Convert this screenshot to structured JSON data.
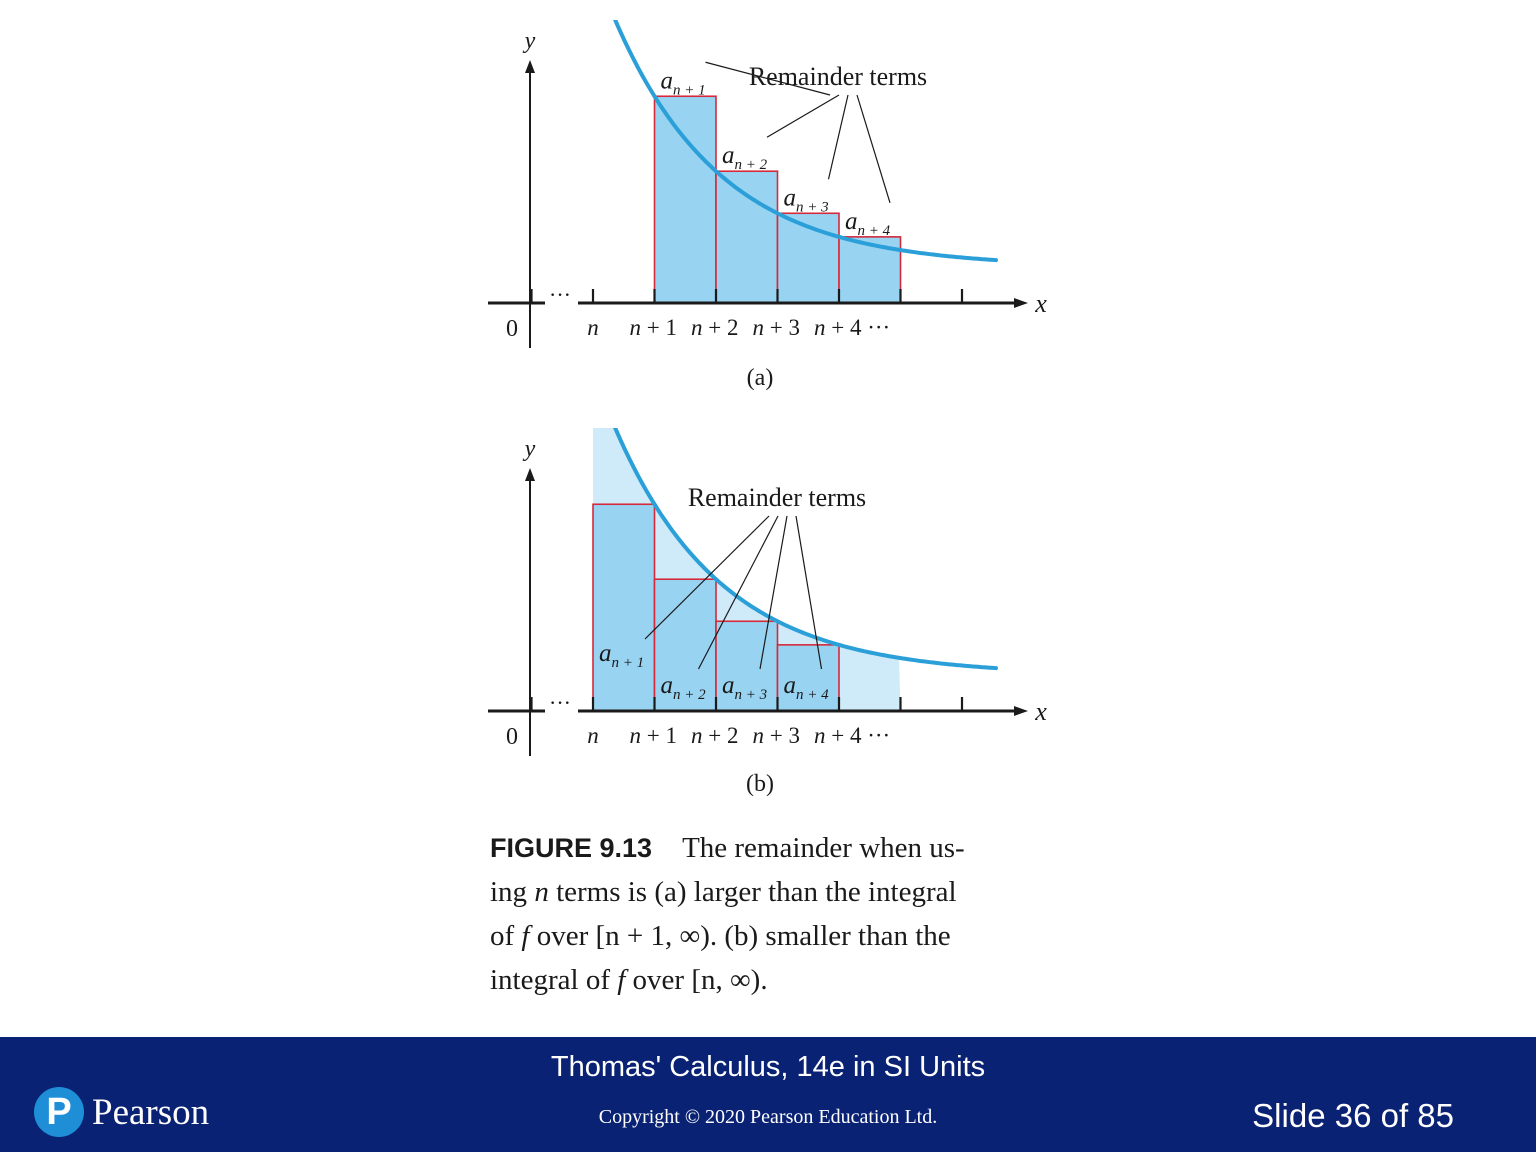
{
  "figure_a": {
    "title": "Remainder terms",
    "axis_x": "x",
    "axis_y": "y",
    "origin": "0",
    "dots": "···",
    "tick_labels": [
      {
        "var": "n",
        "suffix": ""
      },
      {
        "var": "n",
        "suffix": " + 1"
      },
      {
        "var": "n",
        "suffix": " + 2"
      },
      {
        "var": "n",
        "suffix": " + 3"
      },
      {
        "var": "n",
        "suffix": " + 4 ···"
      }
    ],
    "terms": [
      {
        "base": "a",
        "sub": "n + 1"
      },
      {
        "base": "a",
        "sub": "n + 2"
      },
      {
        "base": "a",
        "sub": "n + 3"
      },
      {
        "base": "a",
        "sub": "n + 4"
      }
    ],
    "sub_label": "(a)"
  },
  "figure_b": {
    "title": "Remainder terms",
    "axis_x": "x",
    "axis_y": "y",
    "origin": "0",
    "dots": "···",
    "tick_labels": [
      {
        "var": "n",
        "suffix": ""
      },
      {
        "var": "n",
        "suffix": " + 1"
      },
      {
        "var": "n",
        "suffix": " + 2"
      },
      {
        "var": "n",
        "suffix": " + 3"
      },
      {
        "var": "n",
        "suffix": " + 4 ···"
      }
    ],
    "terms": [
      {
        "base": "a",
        "sub": "n + 1"
      },
      {
        "base": "a",
        "sub": "n + 2"
      },
      {
        "base": "a",
        "sub": "n + 3"
      },
      {
        "base": "a",
        "sub": "n + 4"
      }
    ],
    "sub_label": "(b)"
  },
  "caption": {
    "label": "FIGURE 9.13",
    "line1": "The remainder when us-",
    "line2_a": "ing ",
    "line2_var": "n",
    "line2_b": " terms is (a) larger than the integral",
    "line3_a": "of ",
    "line3_var": "f",
    "line3_b": " over ",
    "line3_interval": "[n + 1, ∞)",
    "line3_c": ". (b) smaller than the",
    "line4_a": "integral of ",
    "line4_var": "f",
    "line4_b": " over ",
    "line4_interval": "[n, ∞)",
    "line4_c": "."
  },
  "footer": {
    "title": "Thomas' Calculus, 14e in SI Units",
    "copyright": "Copyright © 2020 Pearson Education Ltd.",
    "slide": "Slide 36 of 85",
    "logo_letter": "P",
    "logo_text": "Pearson"
  },
  "colors": {
    "curve": "#2a9fd8",
    "fill_light": "#cfeaf8",
    "fill_dark": "#98d3f2",
    "rect_stroke": "#d42a3a",
    "footer_bg": "#0a2274",
    "logo_circle": "#1e8fd6"
  }
}
